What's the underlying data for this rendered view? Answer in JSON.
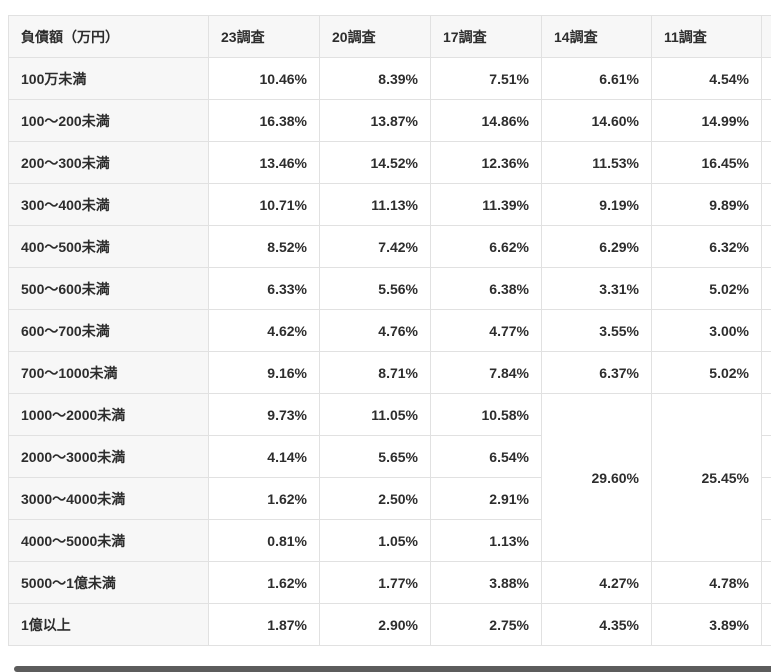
{
  "table": {
    "headers": [
      "負債額（万円）",
      "23調査",
      "20調査",
      "17調査",
      "14調査",
      "11調査"
    ],
    "rows": [
      {
        "label": "100万未満",
        "values": [
          "10.46%",
          "8.39%",
          "7.51%",
          "6.61%",
          "4.54%"
        ]
      },
      {
        "label": "100〜200未満",
        "values": [
          "16.38%",
          "13.87%",
          "14.86%",
          "14.60%",
          "14.99%"
        ]
      },
      {
        "label": "200〜300未満",
        "values": [
          "13.46%",
          "14.52%",
          "12.36%",
          "11.53%",
          "16.45%"
        ]
      },
      {
        "label": "300〜400未満",
        "values": [
          "10.71%",
          "11.13%",
          "11.39%",
          "9.19%",
          "9.89%"
        ]
      },
      {
        "label": "400〜500未満",
        "values": [
          "8.52%",
          "7.42%",
          "6.62%",
          "6.29%",
          "6.32%"
        ]
      },
      {
        "label": "500〜600未満",
        "values": [
          "6.33%",
          "5.56%",
          "6.38%",
          "3.31%",
          "5.02%"
        ]
      },
      {
        "label": "600〜700未満",
        "values": [
          "4.62%",
          "4.76%",
          "4.77%",
          "3.55%",
          "3.00%"
        ]
      },
      {
        "label": "700〜1000未満",
        "values": [
          "9.16%",
          "8.71%",
          "7.84%",
          "6.37%",
          "5.02%"
        ]
      },
      {
        "label": "1000〜2000未満",
        "values": [
          "9.73%",
          "11.05%",
          "10.58%"
        ]
      },
      {
        "label": "2000〜3000未満",
        "values": [
          "4.14%",
          "5.65%",
          "6.54%"
        ]
      },
      {
        "label": "3000〜4000未満",
        "values": [
          "1.62%",
          "2.50%",
          "2.91%"
        ]
      },
      {
        "label": "4000〜5000未満",
        "values": [
          "0.81%",
          "1.05%",
          "1.13%"
        ]
      },
      {
        "label": "5000〜1億未満",
        "values": [
          "1.62%",
          "1.77%",
          "3.88%",
          "4.27%",
          "4.78%"
        ]
      },
      {
        "label": "1億以上",
        "values": [
          "1.87%",
          "2.90%",
          "2.75%",
          "4.35%",
          "3.89%"
        ]
      }
    ],
    "merged": {
      "start_row_index": 8,
      "span_rows": 4,
      "values": [
        "29.60%",
        "25.45%"
      ]
    }
  },
  "colors": {
    "header_bg": "#f7f7f7",
    "cell_bg": "#ffffff",
    "border": "#e1e1e1",
    "text": "#2d2d2d",
    "scrollbar_thumb": "#5c5c5c"
  }
}
